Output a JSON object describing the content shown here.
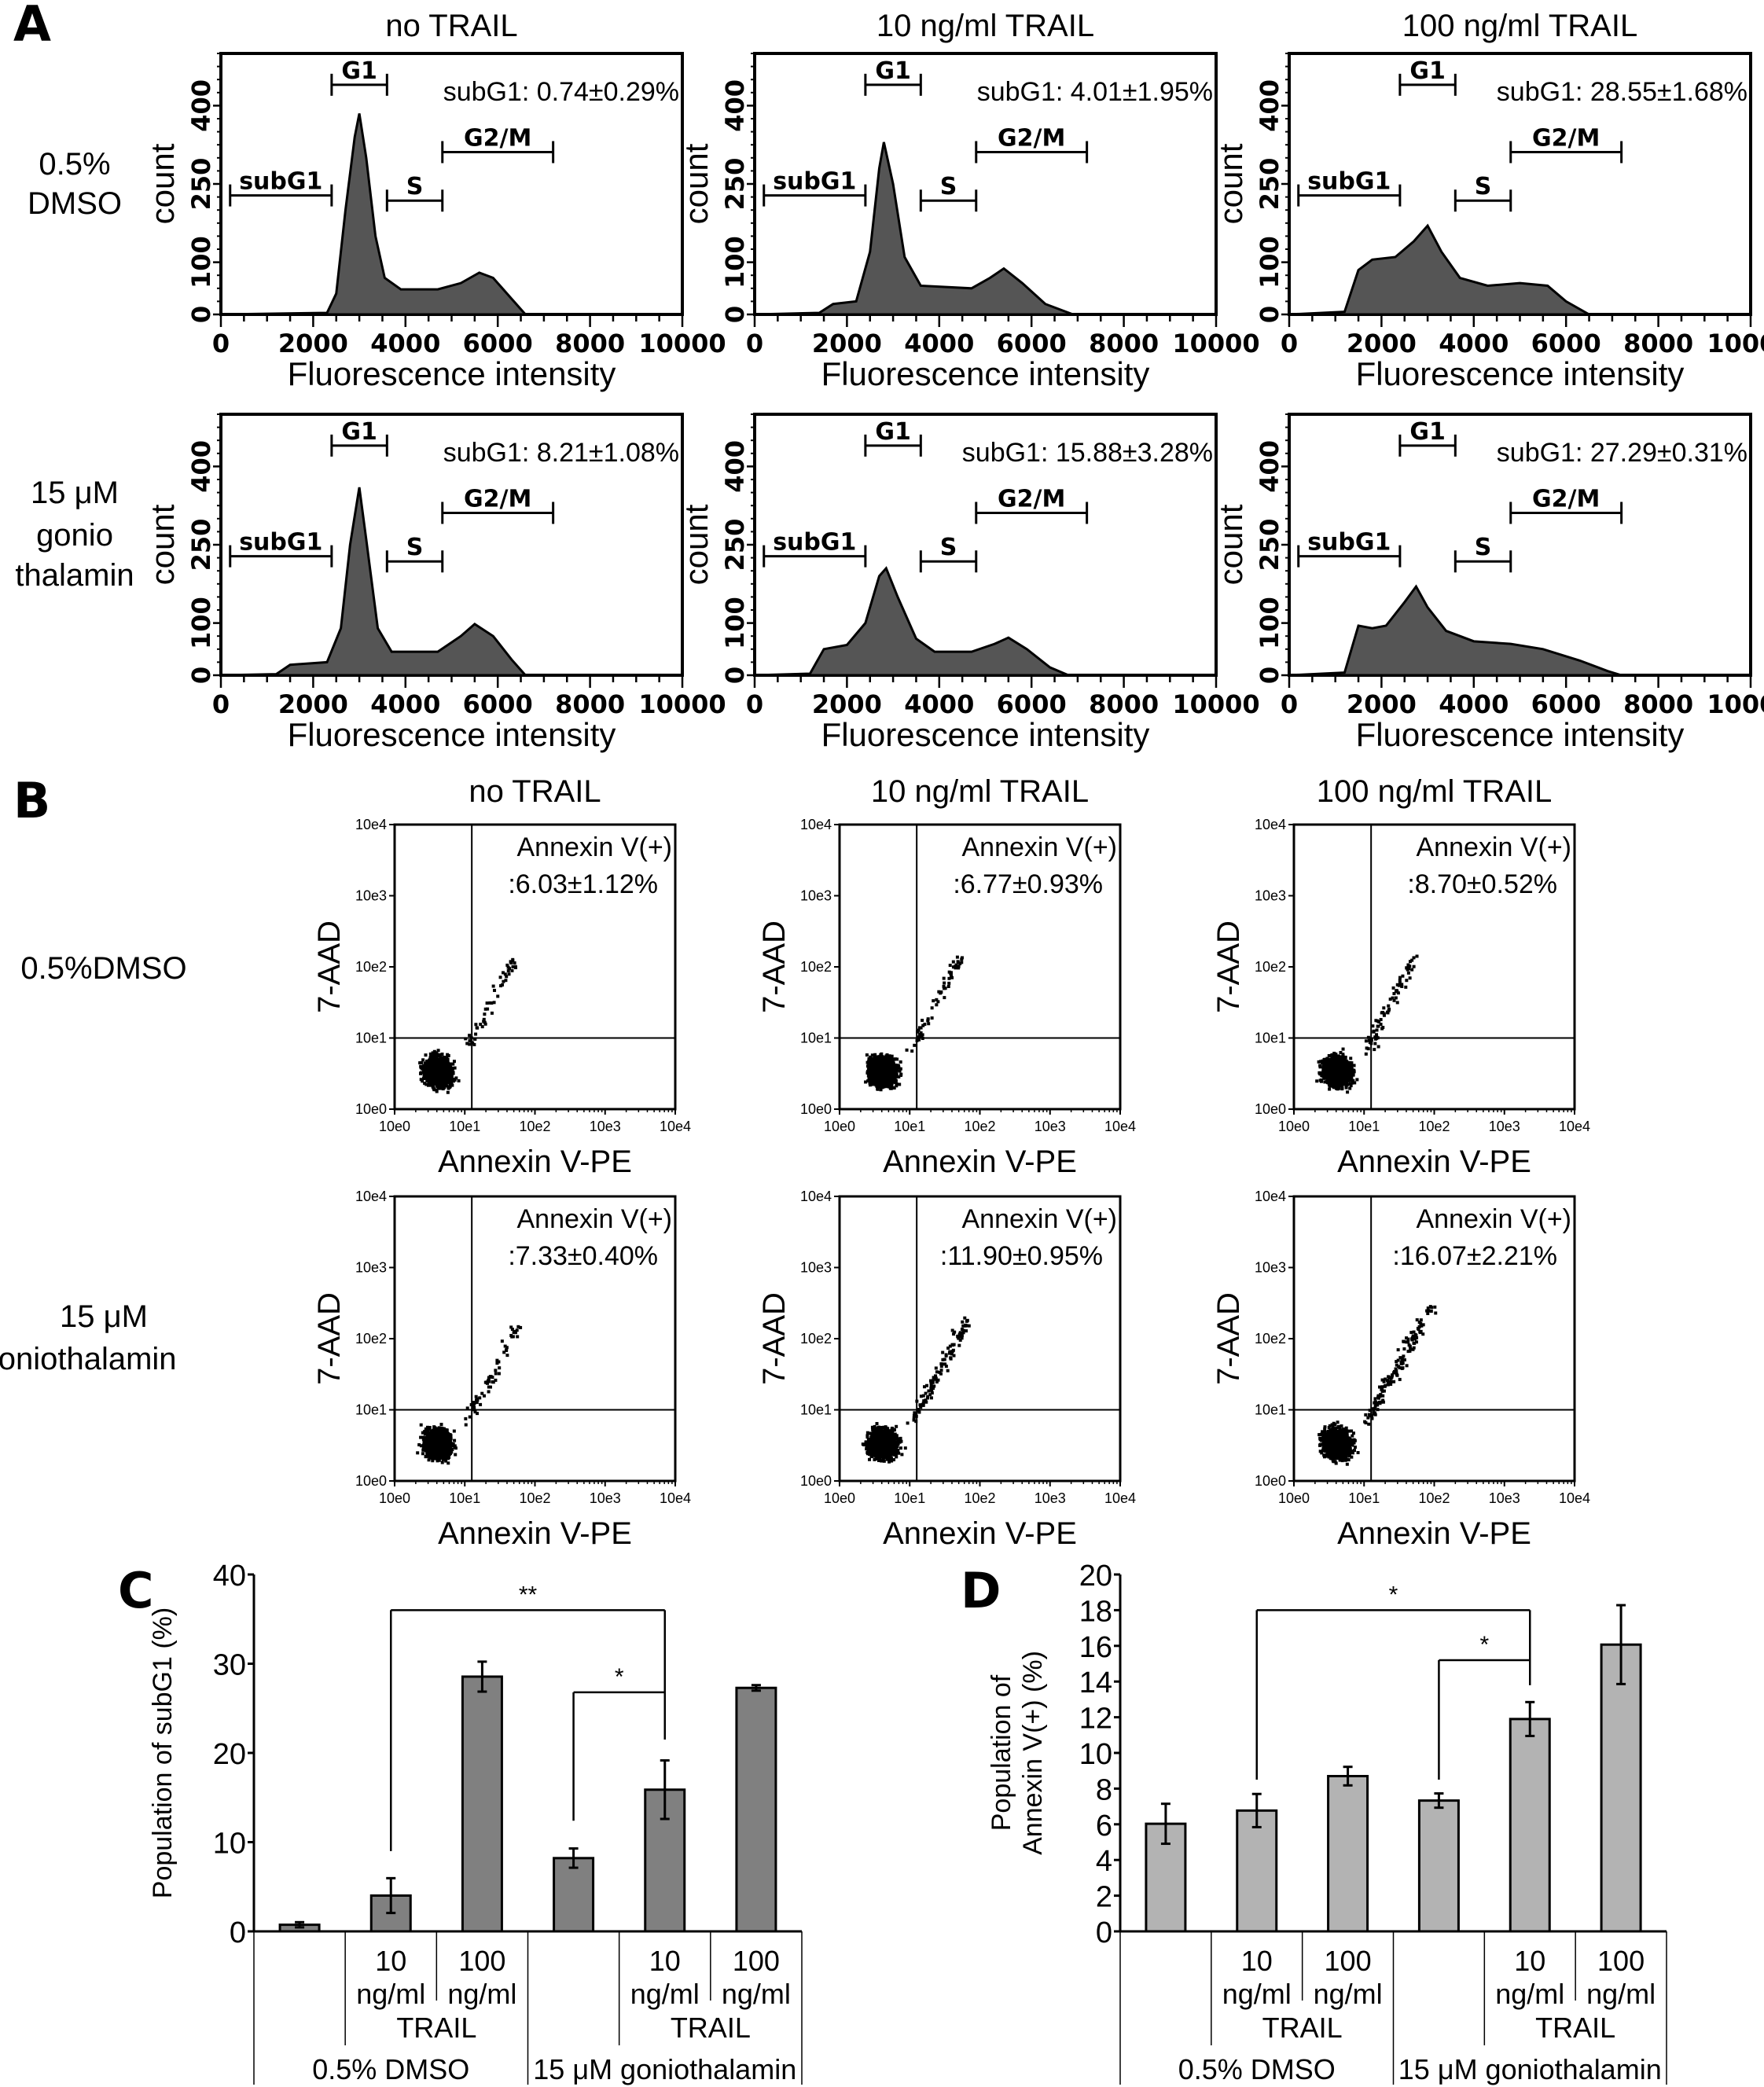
{
  "panel_labels": {
    "a": "A",
    "b": "B",
    "c": "C",
    "d": "D"
  },
  "column_titles": [
    "no TRAIL",
    "10 ng/ml TRAIL",
    "100 ng/ml TRAIL"
  ],
  "panel_a": {
    "row_labels": [
      [
        "0.5%",
        "DMSO"
      ],
      [
        "15 μM",
        "gonio",
        "thalamin"
      ]
    ],
    "xlabel": "Fluorescence intensity",
    "ylabel": "count",
    "xticks": [
      "0",
      "2000",
      "4000",
      "6000",
      "8000",
      "10000"
    ],
    "yticks": [
      "0",
      "100",
      "250",
      "400"
    ],
    "xlim": [
      0,
      10000
    ],
    "ylim": [
      0,
      500
    ],
    "gates": [
      {
        "label": "subG1",
        "range": [
          200,
          2400
        ]
      },
      {
        "label": "G1",
        "range": [
          2400,
          3600
        ]
      },
      {
        "label": "S",
        "range": [
          3600,
          4800
        ]
      },
      {
        "label": "G2/M",
        "range": [
          4800,
          7200
        ]
      }
    ],
    "fill_color": "#555555",
    "histograms": [
      {
        "annotation": "subG1: 0.74±0.29%",
        "profile": [
          [
            0,
            0
          ],
          [
            2300,
            3
          ],
          [
            2500,
            40
          ],
          [
            2700,
            200
          ],
          [
            2900,
            340
          ],
          [
            3000,
            385
          ],
          [
            3150,
            300
          ],
          [
            3350,
            150
          ],
          [
            3550,
            70
          ],
          [
            3900,
            48
          ],
          [
            4700,
            48
          ],
          [
            5200,
            60
          ],
          [
            5600,
            80
          ],
          [
            5900,
            70
          ],
          [
            6300,
            30
          ],
          [
            6600,
            0
          ],
          [
            10000,
            0
          ]
        ]
      },
      {
        "annotation": "subG1: 4.01±1.95%",
        "profile": [
          [
            0,
            0
          ],
          [
            1400,
            3
          ],
          [
            1700,
            20
          ],
          [
            2200,
            25
          ],
          [
            2500,
            120
          ],
          [
            2700,
            280
          ],
          [
            2800,
            330
          ],
          [
            3000,
            250
          ],
          [
            3250,
            110
          ],
          [
            3600,
            55
          ],
          [
            4700,
            50
          ],
          [
            5100,
            70
          ],
          [
            5400,
            88
          ],
          [
            5800,
            60
          ],
          [
            6300,
            20
          ],
          [
            6900,
            0
          ],
          [
            10000,
            0
          ]
        ]
      },
      {
        "annotation": "subG1: 28.55±1.68%",
        "profile": [
          [
            0,
            0
          ],
          [
            1200,
            5
          ],
          [
            1500,
            85
          ],
          [
            1800,
            105
          ],
          [
            2300,
            110
          ],
          [
            2700,
            140
          ],
          [
            3000,
            170
          ],
          [
            3300,
            120
          ],
          [
            3700,
            70
          ],
          [
            4300,
            55
          ],
          [
            5000,
            60
          ],
          [
            5600,
            55
          ],
          [
            6000,
            25
          ],
          [
            6500,
            0
          ],
          [
            10000,
            0
          ]
        ]
      },
      {
        "annotation": "subG1: 8.21±1.08%",
        "profile": [
          [
            0,
            0
          ],
          [
            1200,
            2
          ],
          [
            1500,
            20
          ],
          [
            2300,
            25
          ],
          [
            2600,
            90
          ],
          [
            2800,
            250
          ],
          [
            3000,
            360
          ],
          [
            3150,
            260
          ],
          [
            3400,
            90
          ],
          [
            3700,
            45
          ],
          [
            4700,
            45
          ],
          [
            5200,
            75
          ],
          [
            5500,
            98
          ],
          [
            5900,
            75
          ],
          [
            6300,
            30
          ],
          [
            6600,
            0
          ],
          [
            10000,
            0
          ]
        ]
      },
      {
        "annotation": "subG1: 15.88±3.28%",
        "profile": [
          [
            0,
            0
          ],
          [
            1200,
            3
          ],
          [
            1500,
            50
          ],
          [
            2000,
            58
          ],
          [
            2400,
            100
          ],
          [
            2700,
            190
          ],
          [
            2850,
            205
          ],
          [
            3100,
            150
          ],
          [
            3500,
            70
          ],
          [
            3900,
            45
          ],
          [
            4700,
            45
          ],
          [
            5200,
            60
          ],
          [
            5500,
            72
          ],
          [
            5900,
            50
          ],
          [
            6400,
            15
          ],
          [
            6800,
            0
          ],
          [
            10000,
            0
          ]
        ]
      },
      {
        "annotation": "subG1: 27.29±0.31%",
        "profile": [
          [
            0,
            0
          ],
          [
            1200,
            5
          ],
          [
            1500,
            95
          ],
          [
            1800,
            90
          ],
          [
            2100,
            95
          ],
          [
            2500,
            140
          ],
          [
            2750,
            170
          ],
          [
            3000,
            130
          ],
          [
            3400,
            85
          ],
          [
            4000,
            65
          ],
          [
            4800,
            60
          ],
          [
            5500,
            50
          ],
          [
            6300,
            28
          ],
          [
            6900,
            8
          ],
          [
            7200,
            0
          ],
          [
            10000,
            0
          ]
        ]
      }
    ]
  },
  "panel_b": {
    "row_labels": [
      [
        "0.5%DMSO"
      ],
      [
        "15 μM",
        "goniothalamin"
      ]
    ],
    "xlabel": "Annexin V-PE",
    "ylabel": "7-AAD",
    "ticks": [
      "10e0",
      "10e1",
      "10e2",
      "10e3",
      "10e4"
    ],
    "quadrant_title": "Annexin V(+)",
    "plots": [
      {
        "annotation": ":6.03±1.12%",
        "annexin_pct": 6.03
      },
      {
        "annotation": ":6.77±0.93%",
        "annexin_pct": 6.77
      },
      {
        "annotation": ":8.70±0.52%",
        "annexin_pct": 8.7
      },
      {
        "annotation": ":7.33±0.40%",
        "annexin_pct": 7.33
      },
      {
        "annotation": ":11.90±0.95%",
        "annexin_pct": 11.9
      },
      {
        "annotation": ":16.07±2.21%",
        "annexin_pct": 16.07
      }
    ]
  },
  "chart_data": [
    {
      "type": "bar",
      "title": "",
      "ylabel": "Population of subG1 (%)",
      "ylim": [
        0,
        40
      ],
      "yticks": [
        "0",
        "10",
        "20",
        "30",
        "40"
      ],
      "color": "#808080",
      "categories": [
        {
          "dose": "",
          "unit": ""
        },
        {
          "dose": "10",
          "unit": "ng/ml"
        },
        {
          "dose": "100",
          "unit": "ng/ml"
        },
        {
          "dose": "",
          "unit": ""
        },
        {
          "dose": "10",
          "unit": "ng/ml"
        },
        {
          "dose": "100",
          "unit": "ng/ml"
        }
      ],
      "subgroup_label": "TRAIL",
      "groups": [
        "0.5% DMSO",
        "15 μM goniothalamin"
      ],
      "values": [
        0.74,
        4.01,
        28.55,
        8.21,
        15.88,
        27.29
      ],
      "errors": [
        0.29,
        1.95,
        1.68,
        1.08,
        3.28,
        0.31
      ],
      "significance": [
        {
          "from": 1,
          "to": 4,
          "label": "**",
          "level": 36,
          "from_bottom": 9,
          "to_bottom": 21.5
        },
        {
          "from": 3,
          "to": 4,
          "label": "*",
          "level": 26.8,
          "from_bottom": 12.4,
          "to_bottom": 21.5
        }
      ]
    },
    {
      "type": "bar",
      "title": "",
      "ylabel_lines": [
        "Population of",
        "Annexin V(+) (%)"
      ],
      "ylim": [
        0,
        20
      ],
      "yticks": [
        "0",
        "2",
        "4",
        "6",
        "8",
        "10",
        "12",
        "14",
        "16",
        "18",
        "20"
      ],
      "color": "#b3b3b3",
      "categories": [
        {
          "dose": "",
          "unit": ""
        },
        {
          "dose": "10",
          "unit": "ng/ml"
        },
        {
          "dose": "100",
          "unit": "ng/ml"
        },
        {
          "dose": "",
          "unit": ""
        },
        {
          "dose": "10",
          "unit": "ng/ml"
        },
        {
          "dose": "100",
          "unit": "ng/ml"
        }
      ],
      "subgroup_label": "TRAIL",
      "groups": [
        "0.5% DMSO",
        "15 μM goniothalamin"
      ],
      "values": [
        6.03,
        6.77,
        8.7,
        7.33,
        11.9,
        16.07
      ],
      "errors": [
        1.12,
        0.93,
        0.52,
        0.4,
        0.95,
        2.21
      ],
      "significance": [
        {
          "from": 1,
          "to": 4,
          "label": "*",
          "level": 18,
          "from_bottom": 8.5,
          "to_bottom": 13.8
        },
        {
          "from": 3,
          "to": 4,
          "label": "*",
          "level": 15.2,
          "from_bottom": 8.5,
          "to_bottom": 13.8
        }
      ]
    }
  ]
}
